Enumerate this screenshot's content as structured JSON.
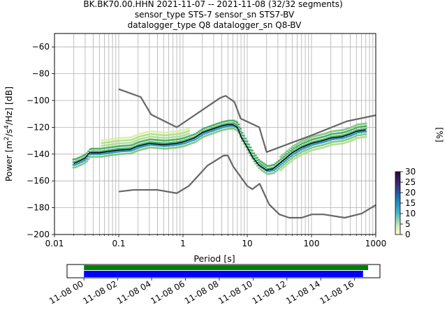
{
  "header": {
    "line1": "BK.BK70.00.HHN   2021-11-07 -- 2021-11-08  (32/32 segments)",
    "line2": "sensor_type STS-7 sensor_sn STS7-BV",
    "line3": "datalogger_type Q8 datalogger_sn Q8-BV"
  },
  "colors": {
    "nlnm_nhnm": "#666666",
    "mode": "#000000",
    "grid": "#b0b0b0",
    "coverage_green": "#008000",
    "coverage_blue": "#0000ff"
  },
  "chart_data": [
    {
      "type": "heatmap",
      "subtype": "probabilistic-power-spectral-density",
      "xlabel": "Period [s]",
      "ylabel": "Power [m²/s⁴/Hz] [dB]",
      "xscale": "log",
      "xlim": [
        0.01,
        1000
      ],
      "ylim": [
        -200,
        -50
      ],
      "xticks": [
        0.01,
        0.1,
        1,
        10,
        100,
        1000
      ],
      "xtick_labels": [
        "0.01",
        "0.1",
        "1",
        "10",
        "100",
        "1000"
      ],
      "yticks": [
        -200,
        -180,
        -160,
        -140,
        -120,
        -100,
        -80,
        -60
      ],
      "ytick_labels": [
        "−200",
        "−180",
        "−160",
        "−140",
        "−120",
        "−100",
        "−80",
        "−60"
      ],
      "grid": true,
      "colorbar": {
        "label": "[%]",
        "range": [
          0,
          30
        ],
        "ticks": [
          "0",
          "5",
          "10",
          "15",
          "20",
          "25",
          "30"
        ]
      },
      "mode_curve": {
        "x": [
          0.02,
          0.025,
          0.03,
          0.035,
          0.05,
          0.07,
          0.1,
          0.15,
          0.2,
          0.3,
          0.5,
          0.8,
          1.0,
          1.5,
          2.0,
          3.0,
          4.0,
          5.0,
          6.0,
          7.0,
          8.0,
          10.0,
          12.0,
          15.0,
          20.0,
          25.0,
          30.0,
          40.0,
          50.0,
          70.0,
          100.0,
          150.0,
          200.0,
          300.0,
          400.0,
          500.0,
          700.0
        ],
        "y": [
          -147,
          -145,
          -143,
          -139,
          -139,
          -138,
          -137,
          -136.5,
          -134,
          -132,
          -133,
          -132,
          -131,
          -128,
          -124,
          -121,
          -119,
          -118,
          -118,
          -120,
          -127,
          -135,
          -142,
          -148,
          -152,
          -151,
          -148,
          -143,
          -139,
          -135,
          -132,
          -130,
          -128,
          -127,
          -125,
          -123,
          -122
        ]
      },
      "nhnm": {
        "x": [
          0.1,
          0.22,
          0.32,
          0.8,
          3.8,
          4.6,
          6.3,
          7.9,
          15.4,
          20.0,
          100.0,
          354.8,
          1000.0
        ],
        "y": [
          -91.5,
          -97.4,
          -110.5,
          -120.0,
          -98.0,
          -96.5,
          -101.0,
          -113.5,
          -120.0,
          -138.5,
          -126.0,
          -115.5,
          -111.0
        ]
      },
      "nlnm": {
        "x": [
          0.1,
          0.17,
          0.4,
          0.8,
          1.24,
          2.4,
          4.3,
          5.0,
          6.0,
          10.0,
          12.0,
          15.6,
          21.9,
          31.6,
          45.0,
          70.0,
          101.0,
          154.0,
          328.0,
          600.0,
          1000.0
        ],
        "y": [
          -168,
          -166.7,
          -166.7,
          -169.2,
          -163.7,
          -148.6,
          -141.1,
          -141.1,
          -149.0,
          -163.8,
          -166.2,
          -162.1,
          -177.5,
          -185.0,
          -187.5,
          -187.5,
          -185.0,
          -185.0,
          -187.5,
          -184.4,
          -178.0
        ]
      }
    },
    {
      "type": "bar",
      "subtype": "data-coverage-timeline",
      "xtick_labels": [
        "11-08 00",
        "11-08 02",
        "11-08 04",
        "11-08 06",
        "11-08 08",
        "11-08 10",
        "11-08 12",
        "11-08 14",
        "11-08 16"
      ],
      "xlim_hours": [
        -1.0,
        17.5
      ],
      "series": [
        {
          "name": "data",
          "start_hour": 0.0,
          "end_hour": 16.8
        },
        {
          "name": "psd",
          "start_hour": 0.0,
          "end_hour": 16.5
        }
      ]
    }
  ]
}
